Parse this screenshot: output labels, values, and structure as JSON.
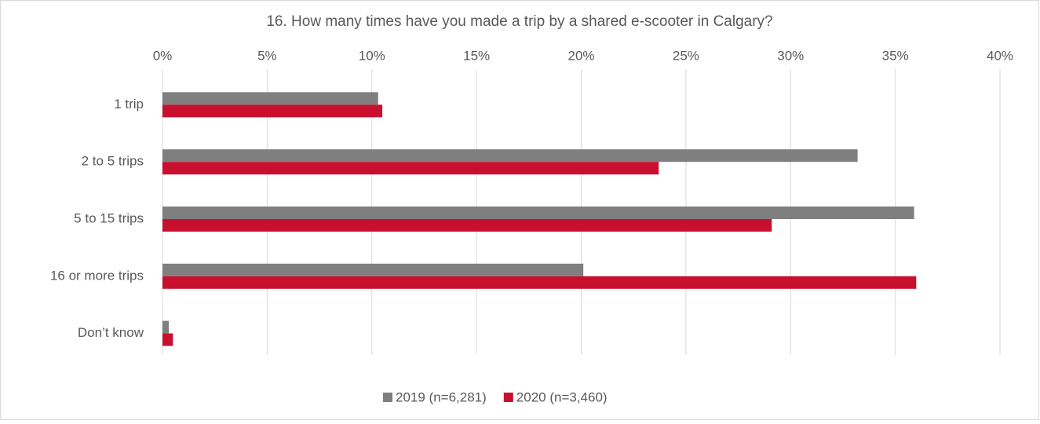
{
  "chart_data": {
    "type": "hbar",
    "title": "16. How many times have you made a trip by a shared e-scooter in Calgary?",
    "categories": [
      "1 trip",
      "2 to 5 trips",
      "5 to 15 trips",
      "16 or more trips",
      "Don’t know"
    ],
    "series": [
      {
        "name": "2019 (n=6,281)",
        "color": "#7f7f7f",
        "values": [
          10.3,
          33.2,
          35.9,
          20.1,
          0.3
        ]
      },
      {
        "name": "2020 (n=3,460)",
        "color": "#c8102e",
        "values": [
          10.5,
          23.7,
          29.1,
          36.0,
          0.5
        ]
      }
    ],
    "xlim": [
      0,
      40
    ],
    "xticks": [
      {
        "value": 0,
        "label": "0%"
      },
      {
        "value": 5,
        "label": "5%"
      },
      {
        "value": 10,
        "label": "10%"
      },
      {
        "value": 15,
        "label": "15%"
      },
      {
        "value": 20,
        "label": "20%"
      },
      {
        "value": 25,
        "label": "25%"
      },
      {
        "value": 30,
        "label": "30%"
      },
      {
        "value": 35,
        "label": "35%"
      },
      {
        "value": 40,
        "label": "40%"
      }
    ],
    "grid": true,
    "legend": "bottom"
  }
}
